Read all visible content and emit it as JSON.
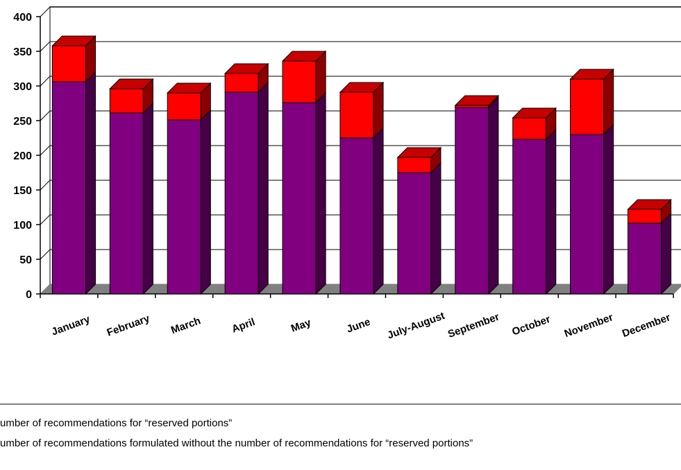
{
  "chart_data": {
    "type": "bar",
    "stacked": true,
    "three_d": true,
    "categories": [
      "January",
      "February",
      "March",
      "April",
      "May",
      "June",
      "July-August",
      "September",
      "October",
      "November",
      "December"
    ],
    "series": [
      {
        "name": "umber of recommendations formulated without the number of recommendations for “reserved portions”",
        "color": "#800080",
        "values": [
          306,
          261,
          251,
          291,
          276,
          225,
          175,
          269,
          223,
          230,
          102
        ]
      },
      {
        "name": "umber of recommendations for “reserved portions”",
        "color": "#ff0000",
        "values": [
          52,
          35,
          39,
          27,
          60,
          66,
          22,
          3,
          31,
          80,
          20
        ]
      }
    ],
    "ylim": [
      0,
      400
    ],
    "yticks": [
      "0",
      "50",
      "100",
      "150",
      "200",
      "250",
      "300",
      "350",
      "400"
    ],
    "grid": true,
    "legend_position": "bottom",
    "legend": [
      "umber of recommendations for “reserved portions”",
      "umber of recommendations formulated without the number of recommendations for “reserved portions”"
    ],
    "title": "",
    "xlabel": "",
    "ylabel": ""
  }
}
